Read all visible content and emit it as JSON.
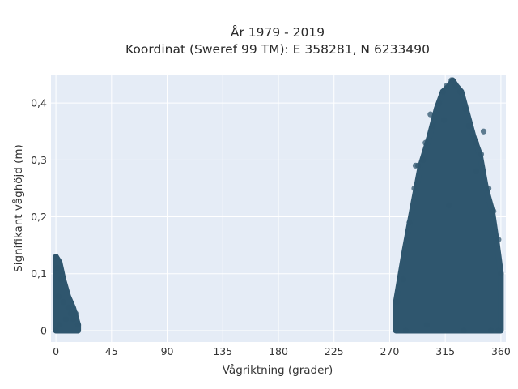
{
  "chart_data": {
    "type": "scatter",
    "title": "År 1979 - 2019",
    "subtitle": "Koordinat (Sweref 99 TM): E 358281, N 6233490",
    "xlabel": "Vågriktning (grader)",
    "ylabel": "Signifikant våghöjd (m)",
    "xlim": [
      -4,
      364
    ],
    "ylim": [
      -0.02,
      0.45
    ],
    "x_ticks": [
      0,
      45,
      90,
      135,
      180,
      225,
      270,
      315,
      360
    ],
    "x_tick_labels": [
      "0",
      "45",
      "90",
      "135",
      "180",
      "225",
      "270",
      "315",
      "360"
    ],
    "y_ticks": [
      0,
      0.1,
      0.2,
      0.3,
      0.4
    ],
    "y_tick_labels": [
      "0",
      "0,1",
      "0,2",
      "0,3",
      "0,4"
    ],
    "grid": true,
    "background_color": "#e5ecf6",
    "marker_color": "#2f566e",
    "clusters": [
      {
        "x_range": [
          0,
          18
        ],
        "y_range": [
          0,
          0.13
        ],
        "envelope": [
          [
            0,
            0.13
          ],
          [
            3,
            0.12
          ],
          [
            6,
            0.09
          ],
          [
            10,
            0.06
          ],
          [
            14,
            0.04
          ],
          [
            18,
            0.01
          ]
        ]
      },
      {
        "x_range": [
          275,
          360
        ],
        "y_range": [
          0,
          0.44
        ],
        "envelope": [
          [
            275,
            0.05
          ],
          [
            282,
            0.14
          ],
          [
            288,
            0.21
          ],
          [
            295,
            0.29
          ],
          [
            302,
            0.34
          ],
          [
            308,
            0.39
          ],
          [
            313,
            0.42
          ],
          [
            318,
            0.43
          ],
          [
            321,
            0.44
          ],
          [
            324,
            0.43
          ],
          [
            328,
            0.42
          ],
          [
            333,
            0.38
          ],
          [
            338,
            0.34
          ],
          [
            343,
            0.31
          ],
          [
            348,
            0.25
          ],
          [
            353,
            0.21
          ],
          [
            357,
            0.15
          ],
          [
            360,
            0.1
          ]
        ]
      }
    ],
    "sample_points": [
      [
        0,
        0.13
      ],
      [
        1,
        0.11
      ],
      [
        0,
        0.0
      ],
      [
        2,
        0.06
      ],
      [
        4,
        0.09
      ],
      [
        6,
        0.05
      ],
      [
        8,
        0.02
      ],
      [
        10,
        0.04
      ],
      [
        12,
        0.03
      ],
      [
        14,
        0.02
      ],
      [
        16,
        0.03
      ],
      [
        18,
        0.01
      ],
      [
        3,
        0.01
      ],
      [
        276,
        0.05
      ],
      [
        281,
        0.09
      ],
      [
        284,
        0.16
      ],
      [
        286,
        0.19
      ],
      [
        290,
        0.25
      ],
      [
        291,
        0.29
      ],
      [
        293,
        0.29
      ],
      [
        297,
        0.3
      ],
      [
        299,
        0.33
      ],
      [
        303,
        0.38
      ],
      [
        305,
        0.36
      ],
      [
        310,
        0.4
      ],
      [
        313,
        0.42
      ],
      [
        316,
        0.43
      ],
      [
        320,
        0.44
      ],
      [
        323,
        0.43
      ],
      [
        327,
        0.42
      ],
      [
        331,
        0.39
      ],
      [
        334,
        0.36
      ],
      [
        338,
        0.34
      ],
      [
        340,
        0.33
      ],
      [
        344,
        0.31
      ],
      [
        346,
        0.35
      ],
      [
        350,
        0.25
      ],
      [
        354,
        0.21
      ],
      [
        358,
        0.16
      ],
      [
        360,
        0.1
      ],
      [
        283,
        0.0
      ],
      [
        300,
        0.01
      ],
      [
        330,
        0.0
      ],
      [
        352,
        0.0
      ],
      [
        358,
        0.0
      ],
      [
        318,
        0.22
      ],
      [
        340,
        0.28
      ],
      [
        314,
        0.37
      ]
    ]
  }
}
